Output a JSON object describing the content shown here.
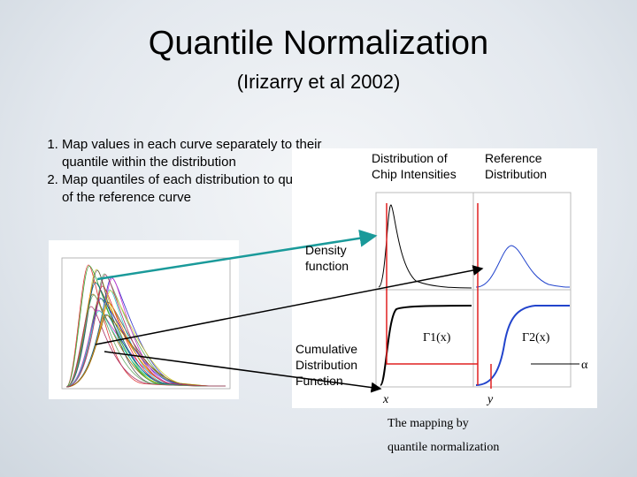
{
  "header": {
    "title": "Quantile Normalization",
    "subtitle": "(Irizarry et al 2002)"
  },
  "steps": [
    "Map values in each curve separately to their quantile within the distribution",
    "Map quantiles of each distribution to quantiles of the reference curve"
  ],
  "figure": {
    "distribution_label": [
      "Distribution of",
      "Chip Intensities"
    ],
    "reference_label": [
      "Reference",
      "Distribution"
    ],
    "density_label": [
      "Density",
      "function"
    ],
    "cdf_label": [
      "Cumulative",
      "Distribution",
      "Function"
    ],
    "gamma1": "Γ1(x)",
    "gamma2": "Γ2(x)",
    "alpha": "α",
    "x_label": "x",
    "y_label": "y",
    "caption": [
      "The mapping by",
      "quantile normalization"
    ]
  }
}
